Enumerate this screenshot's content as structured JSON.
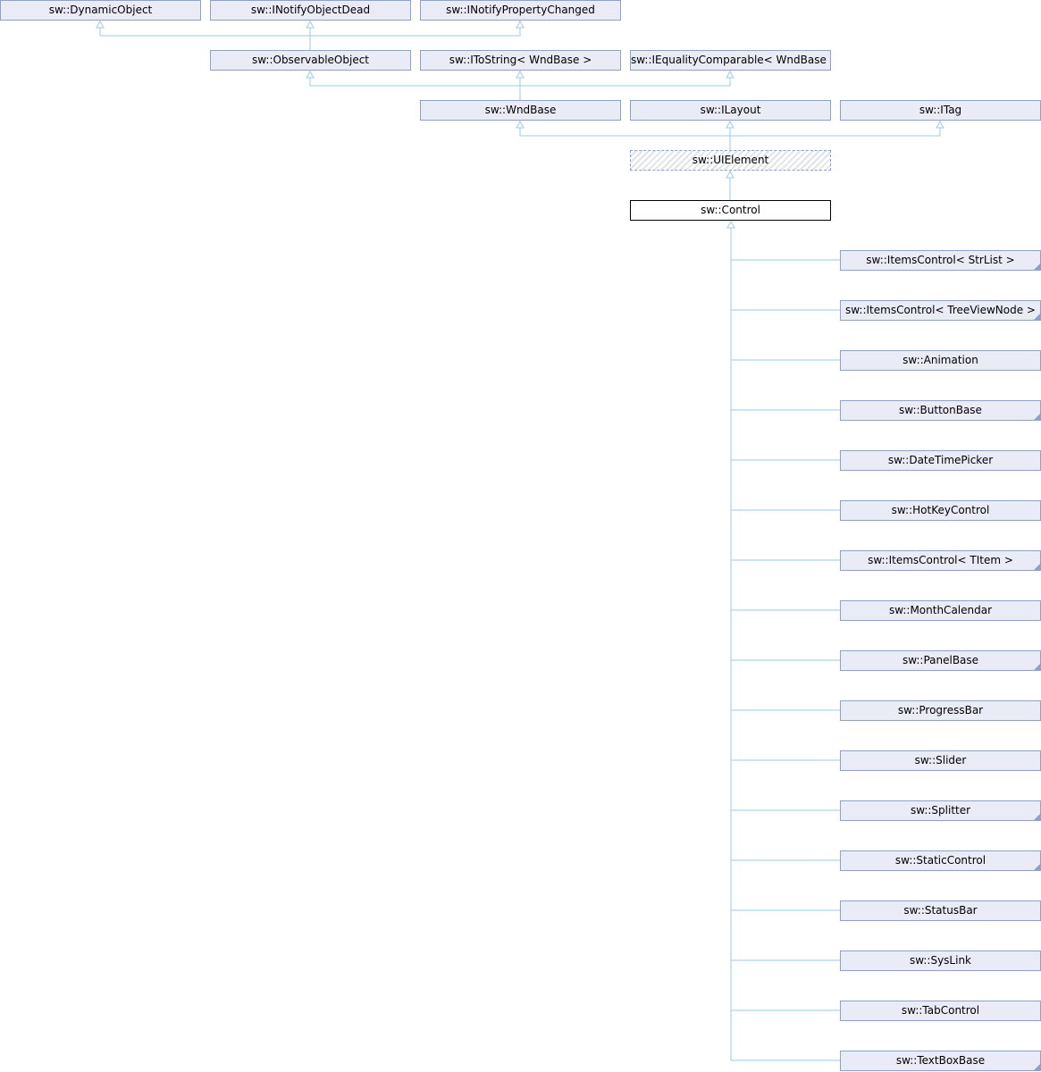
{
  "colors": {
    "node_fill": "#e9ecf6",
    "node_border": "#8ea2c9",
    "edge": "#9ecbe3",
    "current_border": "#000000"
  },
  "nodes": {
    "dynamic_object": "sw::DynamicObject",
    "inotify_object_dead": "sw::INotifyObjectDead",
    "inotify_property_changed": "sw::INotifyPropertyChanged",
    "observable_object": "sw::ObservableObject",
    "itostring": "sw::IToString< WndBase >",
    "iequality_comparable": "sw::IEqualityComparable< WndBase >",
    "wnd_base": "sw::WndBase",
    "ilayout": "sw::ILayout",
    "itag": "sw::ITag",
    "ui_element": "sw::UIElement",
    "control": "sw::Control"
  },
  "derived": [
    {
      "label": "sw::ItemsControl< StrList >",
      "has_children": true
    },
    {
      "label": "sw::ItemsControl< TreeViewNode >",
      "has_children": true
    },
    {
      "label": "sw::Animation",
      "has_children": false
    },
    {
      "label": "sw::ButtonBase",
      "has_children": true
    },
    {
      "label": "sw::DateTimePicker",
      "has_children": false
    },
    {
      "label": "sw::HotKeyControl",
      "has_children": false
    },
    {
      "label": "sw::ItemsControl< TItem >",
      "has_children": true
    },
    {
      "label": "sw::MonthCalendar",
      "has_children": false
    },
    {
      "label": "sw::PanelBase",
      "has_children": true
    },
    {
      "label": "sw::ProgressBar",
      "has_children": false
    },
    {
      "label": "sw::Slider",
      "has_children": false
    },
    {
      "label": "sw::Splitter",
      "has_children": true
    },
    {
      "label": "sw::StaticControl",
      "has_children": true
    },
    {
      "label": "sw::StatusBar",
      "has_children": false
    },
    {
      "label": "sw::SysLink",
      "has_children": false
    },
    {
      "label": "sw::TabControl",
      "has_children": false
    },
    {
      "label": "sw::TextBoxBase",
      "has_children": true
    }
  ]
}
